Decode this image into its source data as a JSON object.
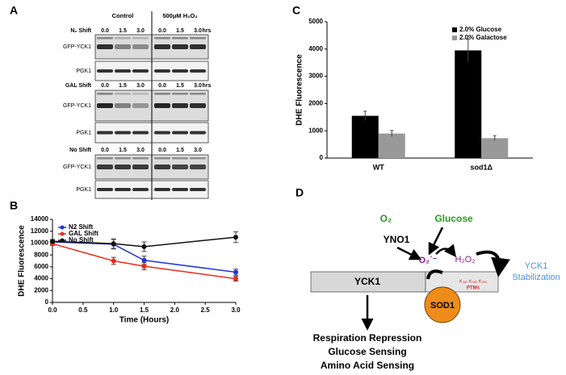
{
  "panel_labels": [
    "A",
    "B",
    "C",
    "D"
  ],
  "blot": {
    "conditions": [
      "Control",
      "500μM H₂O₂"
    ],
    "groups": [
      {
        "name": "N₂ Shift",
        "times": [
          "0.0",
          "1.5",
          "3.0",
          "0.0",
          "1.5",
          "3.0"
        ],
        "unit": "hrs",
        "rows": [
          "GFP-YCK1",
          "PGK1"
        ]
      },
      {
        "name": "GAL Shift",
        "times": [
          "0.0",
          "1.5",
          "3.0",
          "0.0",
          "1.5",
          "3.0"
        ],
        "unit": "hrs",
        "rows": [
          "GFP-YCK1",
          "PGK1"
        ]
      },
      {
        "name": "No Shift",
        "times": [
          "0.0",
          "1.5",
          "3.0",
          "0.0",
          "1.5",
          "3.0"
        ],
        "rows": [
          "GFP-YCK1",
          "PGK1"
        ]
      }
    ]
  },
  "chart_data": [
    {
      "type": "line",
      "xlabel": "Time (Hours)",
      "ylabel": "DHE Fluorescence",
      "x": [
        0,
        1,
        1.5,
        3
      ],
      "series": [
        {
          "name": "N2 Shift",
          "color": "#2233dd",
          "values": [
            10200,
            9800,
            7100,
            5100
          ],
          "errors": [
            300,
            800,
            700,
            500
          ]
        },
        {
          "name": "GAL Shift",
          "color": "#ee2a1a",
          "values": [
            9900,
            7000,
            6100,
            4000
          ],
          "errors": [
            300,
            600,
            600,
            400
          ]
        },
        {
          "name": "No Shift",
          "color": "#111111",
          "values": [
            10300,
            9900,
            9400,
            11000
          ],
          "errors": [
            300,
            800,
            800,
            900
          ]
        }
      ],
      "xlim": [
        0,
        3
      ],
      "xticks": [
        {
          "value": 0,
          "label": "0.0"
        },
        0.5,
        {
          "value": 1,
          "label": "1.0"
        },
        1.5,
        {
          "value": 2,
          "label": "2.0"
        },
        2.5,
        {
          "value": 3,
          "label": "3.0"
        }
      ],
      "ylim": [
        0,
        14000
      ],
      "yticks": [
        0,
        2000,
        4000,
        6000,
        8000,
        10000,
        12000,
        14000
      ],
      "legend": "upper left"
    },
    {
      "type": "bar",
      "ylabel": "DHE Fluorescence",
      "categories": [
        "WT",
        "sod1Δ"
      ],
      "series": [
        {
          "name": "2.0% Glucose",
          "color": "#000000",
          "values": [
            1550,
            3950
          ],
          "errors": [
            170,
            420
          ]
        },
        {
          "name": "2.0% Galactose",
          "color": "#999999",
          "values": [
            900,
            730
          ],
          "errors": [
            110,
            90
          ]
        }
      ],
      "ylim": [
        0,
        5000
      ],
      "yticks": [
        0,
        1000,
        2000,
        3000,
        4000,
        5000
      ],
      "legend": "upper right"
    }
  ],
  "diagram": {
    "o2": "O₂",
    "glucose": "Glucose",
    "yno1": "YNO1",
    "superoxide": "O₂˙⁻",
    "h2o2": "H₂O₂",
    "stabilization": [
      "YCK1",
      "Stabilization"
    ],
    "protein": "YCK1",
    "sod1": "SOD1",
    "sites": "K₃₈₀ K₃₈₅ K₃₉₀",
    "ptms": "PTMs",
    "outputs": [
      "Respiration Repression",
      "Glucose Sensing",
      "Amino Acid Sensing"
    ]
  }
}
